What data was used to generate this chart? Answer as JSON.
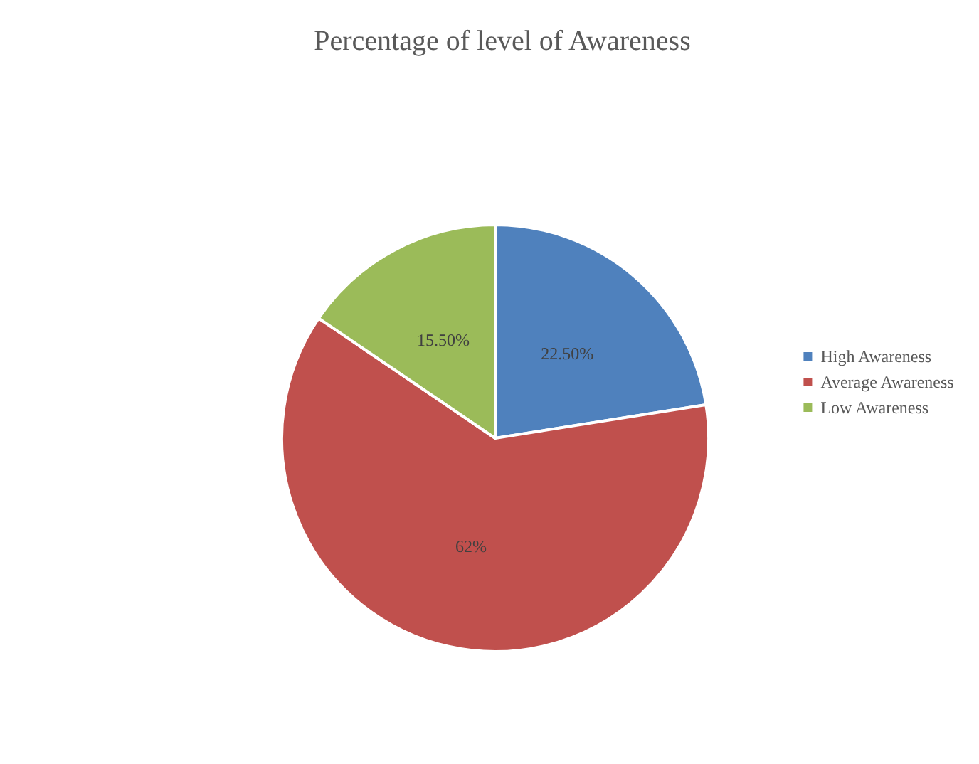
{
  "chart_data": {
    "type": "pie",
    "title": "Percentage of level of Awareness",
    "categories": [
      "High Awareness",
      "Average Awareness",
      "Low Awareness"
    ],
    "values": [
      22.5,
      62,
      15.5
    ],
    "value_labels": [
      "22.50%",
      "62%",
      "15.50%"
    ],
    "colors": [
      "#4f81bd",
      "#c0504d",
      "#9bbb59"
    ],
    "legend": "right"
  }
}
